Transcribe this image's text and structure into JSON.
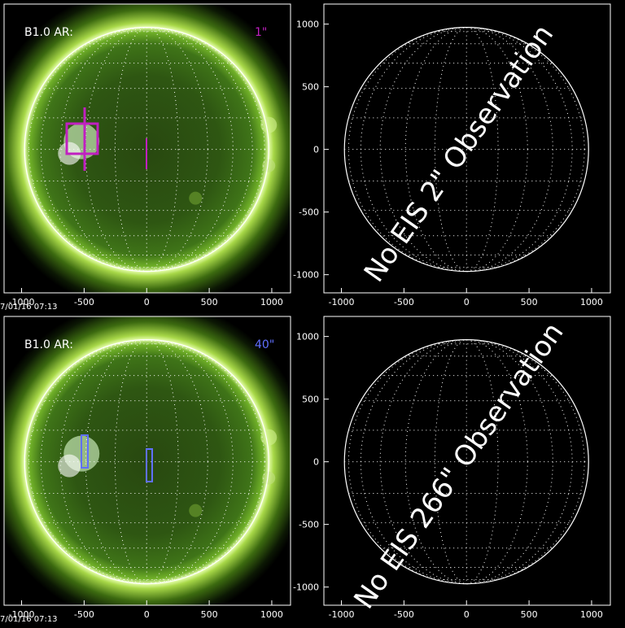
{
  "axes": {
    "xlim": [
      -1140,
      1150
    ],
    "ylim": [
      -1145,
      1160
    ]
  },
  "panels": [
    {
      "label": "B1.0 AR:",
      "scale_label": "1\"",
      "scale_color": "#c020c0",
      "timestamp": "7/01/16 07:13",
      "x_ticks": [
        -1000,
        -500,
        0,
        500,
        1000
      ]
    },
    {
      "message": "No EIS 2\" Observation",
      "x_ticks": [
        -1000,
        -500,
        0,
        500,
        1000
      ],
      "y_ticks": [
        1000,
        500,
        0,
        -500,
        -1000
      ]
    },
    {
      "label": "B1.0 AR:",
      "scale_label": "40\"",
      "scale_color": "#6070ff",
      "timestamp": "7/01/16 07:13",
      "x_ticks": [
        -1000,
        -500,
        0,
        500,
        1000
      ]
    },
    {
      "message": "No EIS 266\" Observation",
      "x_ticks": [
        -1000,
        -500,
        0,
        500,
        1000
      ],
      "y_ticks": [
        1000,
        500,
        0,
        -500,
        -1000
      ]
    }
  ]
}
